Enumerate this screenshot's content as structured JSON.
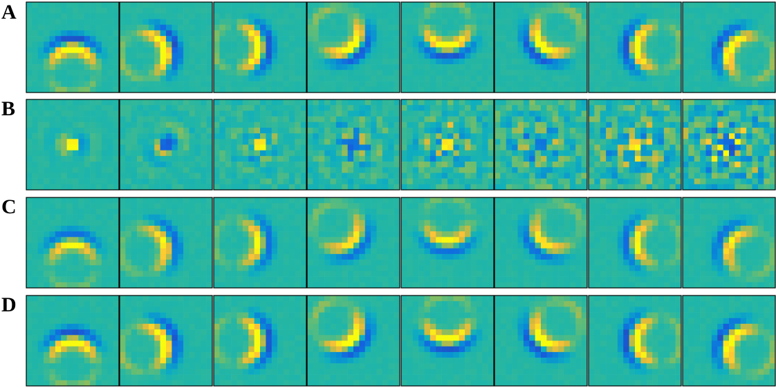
{
  "rows": [
    {
      "label": "A"
    },
    {
      "label": "B"
    },
    {
      "label": "C"
    },
    {
      "label": "D"
    }
  ]
}
